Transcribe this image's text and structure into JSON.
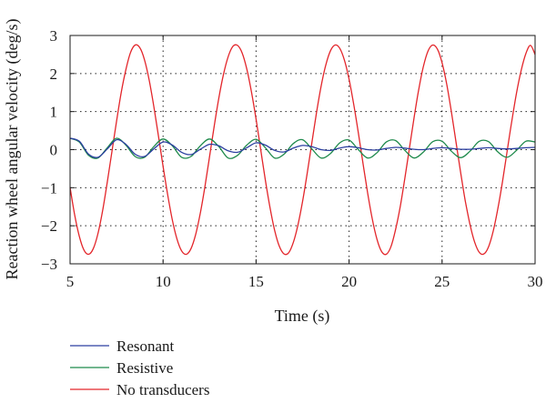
{
  "chart_data": {
    "type": "line",
    "xlabel": "Time (s)",
    "ylabel": "Reaction wheel angular velocity (deg/s)",
    "xlim": [
      5,
      30
    ],
    "ylim": [
      -3,
      3
    ],
    "xticks": [
      5,
      10,
      15,
      20,
      25,
      30
    ],
    "yticks": [
      -3,
      -2,
      -1,
      0,
      1,
      2,
      3
    ],
    "grid": "dotted",
    "legend_position": "below-left",
    "series": [
      {
        "name": "Resonant",
        "color": "#2b3fa0",
        "x": [
          5.0,
          5.5,
          6.0,
          6.5,
          7.0,
          7.5,
          8.0,
          8.5,
          9.0,
          9.5,
          10.0,
          10.5,
          11.0,
          11.5,
          12.0,
          12.5,
          13.0,
          13.5,
          14.0,
          14.5,
          15.0,
          15.5,
          16.0,
          16.5,
          17.0,
          17.5,
          18.0,
          18.5,
          19.0,
          19.5,
          20.0,
          20.5,
          21.0,
          21.5,
          22.0,
          22.5,
          23.0,
          23.5,
          24.0,
          24.5,
          25.0,
          25.5,
          26.0,
          26.5,
          27.0,
          27.5,
          28.0,
          28.5,
          29.0,
          29.5,
          30.0
        ],
        "y": [
          0.3,
          0.22,
          -0.12,
          -0.2,
          0.02,
          0.26,
          0.14,
          -0.12,
          -0.18,
          0.02,
          0.2,
          0.12,
          -0.07,
          -0.13,
          0.01,
          0.14,
          0.1,
          -0.03,
          -0.07,
          0.05,
          0.18,
          0.12,
          -0.02,
          -0.06,
          0.04,
          0.11,
          0.08,
          0.0,
          -0.02,
          0.04,
          0.08,
          0.05,
          0.0,
          -0.01,
          0.03,
          0.06,
          0.04,
          0.01,
          0.0,
          0.03,
          0.05,
          0.03,
          0.01,
          0.01,
          0.03,
          0.05,
          0.03,
          0.02,
          0.03,
          0.05,
          0.06
        ]
      },
      {
        "name": "Resistive",
        "color": "#1f8a4c",
        "x": [
          5.0,
          5.5,
          6.0,
          6.5,
          7.0,
          7.5,
          8.0,
          8.5,
          9.0,
          9.5,
          10.0,
          10.5,
          11.0,
          11.5,
          12.0,
          12.5,
          13.0,
          13.5,
          14.0,
          14.5,
          15.0,
          15.5,
          16.0,
          16.5,
          17.0,
          17.5,
          18.0,
          18.5,
          19.0,
          19.5,
          20.0,
          20.5,
          21.0,
          21.5,
          22.0,
          22.5,
          23.0,
          23.5,
          24.0,
          24.5,
          25.0,
          25.5,
          26.0,
          26.5,
          27.0,
          27.5,
          28.0,
          28.5,
          29.0,
          29.5,
          30.0
        ],
        "y": [
          0.3,
          0.2,
          -0.15,
          -0.22,
          0.05,
          0.3,
          0.12,
          -0.18,
          -0.2,
          0.08,
          0.28,
          0.1,
          -0.2,
          -0.18,
          0.1,
          0.28,
          0.08,
          -0.22,
          -0.15,
          0.12,
          0.27,
          0.05,
          -0.22,
          -0.12,
          0.16,
          0.26,
          0.02,
          -0.22,
          -0.1,
          0.18,
          0.25,
          0.0,
          -0.22,
          -0.08,
          0.2,
          0.24,
          -0.02,
          -0.22,
          -0.06,
          0.21,
          0.22,
          -0.04,
          -0.21,
          -0.04,
          0.22,
          0.21,
          -0.06,
          -0.2,
          -0.02,
          0.22,
          0.2
        ]
      },
      {
        "name": "No transducers",
        "color": "#e3262b",
        "x": [
          5.0,
          5.25,
          5.5,
          5.75,
          6.0,
          6.25,
          6.5,
          6.75,
          7.0,
          7.25,
          7.5,
          7.75,
          8.0,
          8.25,
          8.5,
          8.75,
          9.0,
          9.25,
          9.5,
          9.75,
          10.0,
          10.25,
          10.5,
          10.75,
          11.0,
          11.25,
          11.5,
          11.75,
          12.0,
          12.25,
          12.5,
          12.75,
          13.0,
          13.25,
          13.5,
          13.75,
          14.0,
          14.25,
          14.5,
          14.75,
          15.0,
          15.25,
          15.5,
          15.75,
          16.0,
          16.25,
          16.5,
          16.75,
          17.0,
          17.25,
          17.5,
          17.75,
          18.0,
          18.25,
          18.5,
          18.75,
          19.0,
          19.25,
          19.5,
          19.75,
          20.0,
          20.25,
          20.5,
          20.75,
          21.0,
          21.25,
          21.5,
          21.75,
          22.0,
          22.25,
          22.5,
          22.75,
          23.0,
          23.25,
          23.5,
          23.75,
          24.0,
          24.25,
          24.5,
          24.75,
          25.0,
          25.25,
          25.5,
          25.75,
          26.0,
          26.25,
          26.5,
          26.75,
          27.0,
          27.25,
          27.5,
          27.75,
          28.0,
          28.25,
          28.5,
          28.75,
          29.0,
          29.25,
          29.5,
          29.75,
          30.0
        ],
        "y": [
          -1.0,
          -1.72,
          -2.28,
          -2.64,
          -2.75,
          -2.6,
          -2.2,
          -1.6,
          -0.85,
          -0.05,
          0.75,
          1.5,
          2.1,
          2.55,
          2.75,
          2.68,
          2.36,
          1.83,
          1.14,
          0.36,
          -0.44,
          -1.19,
          -1.85,
          -2.35,
          -2.66,
          -2.75,
          -2.6,
          -2.23,
          -1.67,
          -0.97,
          -0.18,
          0.62,
          1.36,
          1.98,
          2.44,
          2.71,
          2.74,
          2.54,
          2.12,
          1.52,
          0.8,
          0.0,
          -0.8,
          -1.52,
          -2.12,
          -2.54,
          -2.74,
          -2.71,
          -2.44,
          -1.98,
          -1.36,
          -0.62,
          0.18,
          0.97,
          1.67,
          2.23,
          2.6,
          2.75,
          2.66,
          2.35,
          1.85,
          1.19,
          0.44,
          -0.36,
          -1.14,
          -1.83,
          -2.36,
          -2.68,
          -2.75,
          -2.55,
          -2.1,
          -1.5,
          -0.75,
          0.05,
          0.85,
          1.6,
          2.2,
          2.6,
          2.75,
          2.64,
          2.28,
          1.72,
          1.0,
          0.2,
          -0.6,
          -1.35,
          -1.97,
          -2.43,
          -2.7,
          -2.74,
          -2.55,
          -2.14,
          -1.55,
          -0.84,
          -0.04,
          0.76,
          1.49,
          2.08,
          2.52,
          2.74,
          2.5
        ]
      }
    ]
  }
}
